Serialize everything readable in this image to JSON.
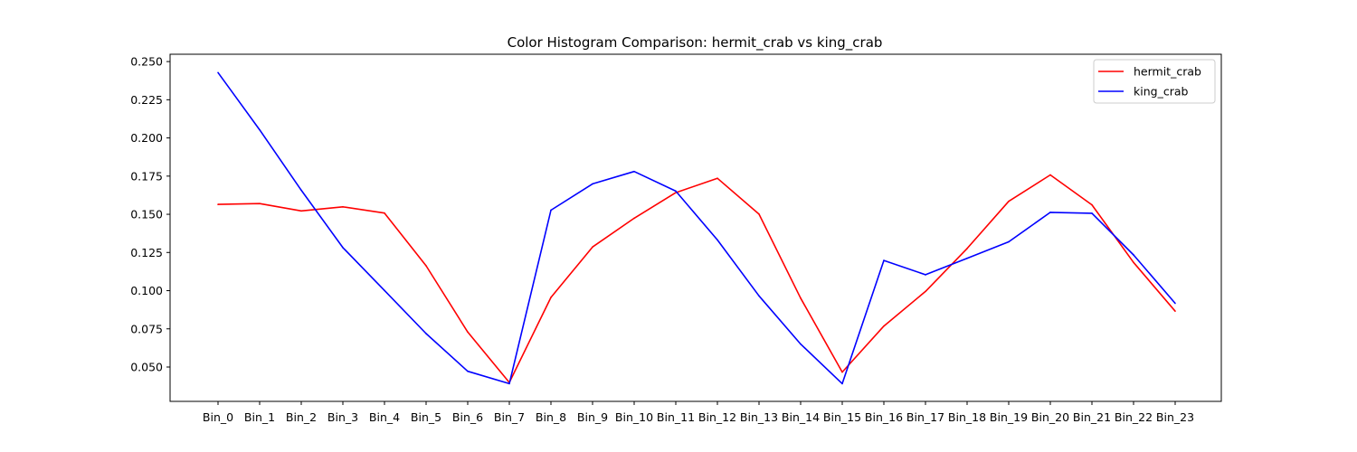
{
  "chart_data": {
    "type": "line",
    "title": "Color Histogram Comparison: hermit_crab vs king_crab",
    "xlabel": "",
    "ylabel": "",
    "categories": [
      "Bin_0",
      "Bin_1",
      "Bin_2",
      "Bin_3",
      "Bin_4",
      "Bin_5",
      "Bin_6",
      "Bin_7",
      "Bin_8",
      "Bin_9",
      "Bin_10",
      "Bin_11",
      "Bin_12",
      "Bin_13",
      "Bin_14",
      "Bin_15",
      "Bin_16",
      "Bin_17",
      "Bin_18",
      "Bin_19",
      "Bin_20",
      "Bin_21",
      "Bin_22",
      "Bin_23"
    ],
    "yticks": [
      "0.050",
      "0.075",
      "0.100",
      "0.125",
      "0.150",
      "0.175",
      "0.200",
      "0.225",
      "0.250"
    ],
    "ylim": [
      0.0275,
      0.2548
    ],
    "grid": false,
    "legend_position": "top-right",
    "series": [
      {
        "name": "hermit_crab",
        "color": "#ff0000",
        "values": [
          0.1565,
          0.157,
          0.1522,
          0.1549,
          0.1508,
          0.1163,
          0.0729,
          0.0399,
          0.0956,
          0.1286,
          0.1474,
          0.1642,
          0.1736,
          0.1501,
          0.0951,
          0.0467,
          0.0768,
          0.0995,
          0.1276,
          0.1585,
          0.1758,
          0.1562,
          0.1185,
          0.0866
        ]
      },
      {
        "name": "king_crab",
        "color": "#0000ff",
        "values": [
          0.2428,
          0.2053,
          0.1658,
          0.1282,
          0.1001,
          0.0719,
          0.0472,
          0.0391,
          0.1527,
          0.1699,
          0.178,
          0.1652,
          0.1332,
          0.0966,
          0.065,
          0.0391,
          0.1198,
          0.1104,
          0.1212,
          0.132,
          0.1513,
          0.1507,
          0.1234,
          0.0917
        ]
      }
    ]
  }
}
